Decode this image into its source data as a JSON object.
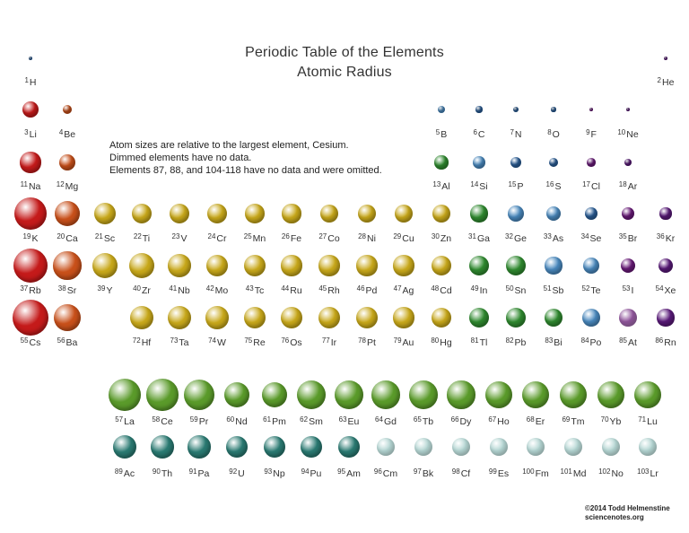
{
  "title": "Periodic Table of the Elements",
  "subtitle": "Atomic Radius",
  "notes": [
    "Atom sizes are relative to the largest element, Cesium.",
    "Dimmed elements have no data.",
    "Elements 87, 88, and 104-118 have no data and were omitted."
  ],
  "credit": [
    "©2014 Todd Helmenstine",
    "sciencenotes.org"
  ],
  "colors": {
    "alkali_metal": "#c41a1a",
    "alkaline_earth": "#c8501a",
    "transition_metal": "#c8a81a",
    "post_transition_metal": "#2f8a2f",
    "metalloid": "#4a8ac0",
    "nonmetal": "#2a5f9a",
    "halogen": "#6a1a7a",
    "noble_gas": "#5a1a7a",
    "lanthanide": "#5a9a2a",
    "actinide": "#2a7a72",
    "actinide_no_data": "#9ac8c4"
  },
  "elements": [
    {
      "n": 1,
      "s": "H",
      "c": "nonmetal",
      "rel": 0.11
    },
    {
      "n": 2,
      "s": "He",
      "c": "noble_gas",
      "rel": 0.06
    },
    {
      "n": 3,
      "s": "Li",
      "c": "alkali_metal",
      "rel": 0.46
    },
    {
      "n": 4,
      "s": "Be",
      "c": "alkaline_earth",
      "rel": 0.27
    },
    {
      "n": 5,
      "s": "B",
      "c": "metalloid",
      "rel": 0.22
    },
    {
      "n": 6,
      "s": "C",
      "c": "nonmetal",
      "rel": 0.18
    },
    {
      "n": 7,
      "s": "N",
      "c": "nonmetal",
      "rel": 0.15
    },
    {
      "n": 8,
      "s": "O",
      "c": "nonmetal",
      "rel": 0.13
    },
    {
      "n": 9,
      "s": "F",
      "c": "halogen",
      "rel": 0.11
    },
    {
      "n": 10,
      "s": "Ne",
      "c": "noble_gas",
      "rel": 0.1
    },
    {
      "n": 11,
      "s": "Na",
      "c": "alkali_metal",
      "rel": 0.58
    },
    {
      "n": 12,
      "s": "Mg",
      "c": "alkaline_earth",
      "rel": 0.46
    },
    {
      "n": 13,
      "s": "Al",
      "c": "post_transition_metal",
      "rel": 0.38
    },
    {
      "n": 14,
      "s": "Si",
      "c": "metalloid",
      "rel": 0.34
    },
    {
      "n": 15,
      "s": "P",
      "c": "nonmetal",
      "rel": 0.3
    },
    {
      "n": 16,
      "s": "S",
      "c": "nonmetal",
      "rel": 0.27
    },
    {
      "n": 17,
      "s": "Cl",
      "c": "halogen",
      "rel": 0.24
    },
    {
      "n": 18,
      "s": "Ar",
      "c": "noble_gas",
      "rel": 0.22
    },
    {
      "n": 19,
      "s": "K",
      "c": "alkali_metal",
      "rel": 0.9
    },
    {
      "n": 20,
      "s": "Ca",
      "c": "alkaline_earth",
      "rel": 0.71
    },
    {
      "n": 21,
      "s": "Sc",
      "c": "transition_metal",
      "rel": 0.6
    },
    {
      "n": 22,
      "s": "Ti",
      "c": "transition_metal",
      "rel": 0.57
    },
    {
      "n": 23,
      "s": "V",
      "c": "transition_metal",
      "rel": 0.55
    },
    {
      "n": 24,
      "s": "Cr",
      "c": "transition_metal",
      "rel": 0.55
    },
    {
      "n": 25,
      "s": "Mn",
      "c": "transition_metal",
      "rel": 0.54
    },
    {
      "n": 26,
      "s": "Fe",
      "c": "transition_metal",
      "rel": 0.53
    },
    {
      "n": 27,
      "s": "Co",
      "c": "transition_metal",
      "rel": 0.52
    },
    {
      "n": 28,
      "s": "Ni",
      "c": "transition_metal",
      "rel": 0.51
    },
    {
      "n": 29,
      "s": "Cu",
      "c": "transition_metal",
      "rel": 0.51
    },
    {
      "n": 30,
      "s": "Zn",
      "c": "transition_metal",
      "rel": 0.5
    },
    {
      "n": 31,
      "s": "Ga",
      "c": "post_transition_metal",
      "rel": 0.48
    },
    {
      "n": 32,
      "s": "Ge",
      "c": "metalloid",
      "rel": 0.46
    },
    {
      "n": 33,
      "s": "As",
      "c": "metalloid",
      "rel": 0.42
    },
    {
      "n": 34,
      "s": "Se",
      "c": "nonmetal",
      "rel": 0.37
    },
    {
      "n": 35,
      "s": "Br",
      "c": "halogen",
      "rel": 0.35
    },
    {
      "n": 36,
      "s": "Kr",
      "c": "noble_gas",
      "rel": 0.33
    },
    {
      "n": 37,
      "s": "Rb",
      "c": "alkali_metal",
      "rel": 0.96
    },
    {
      "n": 38,
      "s": "Sr",
      "c": "alkaline_earth",
      "rel": 0.78
    },
    {
      "n": 39,
      "s": "Y",
      "c": "transition_metal",
      "rel": 0.72
    },
    {
      "n": 40,
      "s": "Zr",
      "c": "transition_metal",
      "rel": 0.7
    },
    {
      "n": 41,
      "s": "Nb",
      "c": "transition_metal",
      "rel": 0.64
    },
    {
      "n": 42,
      "s": "Mo",
      "c": "transition_metal",
      "rel": 0.62
    },
    {
      "n": 43,
      "s": "Tc",
      "c": "transition_metal",
      "rel": 0.6
    },
    {
      "n": 44,
      "s": "Ru",
      "c": "transition_metal",
      "rel": 0.58
    },
    {
      "n": 45,
      "s": "Rh",
      "c": "transition_metal",
      "rel": 0.58
    },
    {
      "n": 46,
      "s": "Pd",
      "c": "transition_metal",
      "rel": 0.58
    },
    {
      "n": 47,
      "s": "Ag",
      "c": "transition_metal",
      "rel": 0.58
    },
    {
      "n": 48,
      "s": "Cd",
      "c": "transition_metal",
      "rel": 0.57
    },
    {
      "n": 49,
      "s": "In",
      "c": "post_transition_metal",
      "rel": 0.57
    },
    {
      "n": 50,
      "s": "Sn",
      "c": "post_transition_metal",
      "rel": 0.55
    },
    {
      "n": 51,
      "s": "Sb",
      "c": "metalloid",
      "rel": 0.48
    },
    {
      "n": 52,
      "s": "Te",
      "c": "metalloid",
      "rel": 0.45
    },
    {
      "n": 53,
      "s": "I",
      "c": "halogen",
      "rel": 0.42
    },
    {
      "n": 54,
      "s": "Xe",
      "c": "noble_gas",
      "rel": 0.41
    },
    {
      "n": 55,
      "s": "Cs",
      "c": "alkali_metal",
      "rel": 1.0
    },
    {
      "n": 56,
      "s": "Ba",
      "c": "alkaline_earth",
      "rel": 0.76
    },
    {
      "n": 72,
      "s": "Hf",
      "c": "transition_metal",
      "rel": 0.66
    },
    {
      "n": 73,
      "s": "Ta",
      "c": "transition_metal",
      "rel": 0.66
    },
    {
      "n": 74,
      "s": "W",
      "c": "transition_metal",
      "rel": 0.64
    },
    {
      "n": 75,
      "s": "Re",
      "c": "transition_metal",
      "rel": 0.62
    },
    {
      "n": 76,
      "s": "Os",
      "c": "transition_metal",
      "rel": 0.61
    },
    {
      "n": 77,
      "s": "Ir",
      "c": "transition_metal",
      "rel": 0.6
    },
    {
      "n": 78,
      "s": "Pt",
      "c": "transition_metal",
      "rel": 0.6
    },
    {
      "n": 79,
      "s": "Au",
      "c": "transition_metal",
      "rel": 0.58
    },
    {
      "n": 80,
      "s": "Hg",
      "c": "transition_metal",
      "rel": 0.57
    },
    {
      "n": 81,
      "s": "Tl",
      "c": "post_transition_metal",
      "rel": 0.57
    },
    {
      "n": 82,
      "s": "Pb",
      "c": "post_transition_metal",
      "rel": 0.55
    },
    {
      "n": 83,
      "s": "Bi",
      "c": "post_transition_metal",
      "rel": 0.52
    },
    {
      "n": 84,
      "s": "Po",
      "c": "metalloid",
      "rel": 0.5
    },
    {
      "n": 85,
      "s": "At",
      "c": "halogen",
      "rel": 0.5,
      "dimmed": true
    },
    {
      "n": 86,
      "s": "Rn",
      "c": "noble_gas",
      "rel": 0.48
    },
    {
      "n": 57,
      "s": "La",
      "c": "lanthanide",
      "rel": 0.9
    },
    {
      "n": 58,
      "s": "Ce",
      "c": "lanthanide",
      "rel": 0.88
    },
    {
      "n": 59,
      "s": "Pr",
      "c": "lanthanide",
      "rel": 0.86
    },
    {
      "n": 60,
      "s": "Nd",
      "c": "lanthanide",
      "rel": 0.72
    },
    {
      "n": 61,
      "s": "Pm",
      "c": "lanthanide",
      "rel": 0.71
    },
    {
      "n": 62,
      "s": "Sm",
      "c": "lanthanide",
      "rel": 0.82
    },
    {
      "n": 63,
      "s": "Eu",
      "c": "lanthanide",
      "rel": 0.8
    },
    {
      "n": 64,
      "s": "Gd",
      "c": "lanthanide",
      "rel": 0.79
    },
    {
      "n": 65,
      "s": "Tb",
      "c": "lanthanide",
      "rel": 0.79
    },
    {
      "n": 66,
      "s": "Dy",
      "c": "lanthanide",
      "rel": 0.78
    },
    {
      "n": 67,
      "s": "Ho",
      "c": "lanthanide",
      "rel": 0.77
    },
    {
      "n": 68,
      "s": "Er",
      "c": "lanthanide",
      "rel": 0.77
    },
    {
      "n": 69,
      "s": "Tm",
      "c": "lanthanide",
      "rel": 0.76
    },
    {
      "n": 70,
      "s": "Yb",
      "c": "lanthanide",
      "rel": 0.76
    },
    {
      "n": 71,
      "s": "Lu",
      "c": "lanthanide",
      "rel": 0.75
    },
    {
      "n": 89,
      "s": "Ac",
      "c": "actinide",
      "rel": 0.67
    },
    {
      "n": 90,
      "s": "Th",
      "c": "actinide",
      "rel": 0.64
    },
    {
      "n": 91,
      "s": "Pa",
      "c": "actinide",
      "rel": 0.63
    },
    {
      "n": 92,
      "s": "U",
      "c": "actinide",
      "rel": 0.62
    },
    {
      "n": 93,
      "s": "Np",
      "c": "actinide",
      "rel": 0.61
    },
    {
      "n": 94,
      "s": "Pu",
      "c": "actinide",
      "rel": 0.61
    },
    {
      "n": 95,
      "s": "Am",
      "c": "actinide",
      "rel": 0.6
    },
    {
      "n": 96,
      "s": "Cm",
      "c": "actinide_no_data",
      "rel": 0.52,
      "dimmed": true
    },
    {
      "n": 97,
      "s": "Bk",
      "c": "actinide_no_data",
      "rel": 0.52,
      "dimmed": true
    },
    {
      "n": 98,
      "s": "Cf",
      "c": "actinide_no_data",
      "rel": 0.52,
      "dimmed": true
    },
    {
      "n": 99,
      "s": "Es",
      "c": "actinide_no_data",
      "rel": 0.52,
      "dimmed": true
    },
    {
      "n": 100,
      "s": "Fm",
      "c": "actinide_no_data",
      "rel": 0.52,
      "dimmed": true
    },
    {
      "n": 101,
      "s": "Md",
      "c": "actinide_no_data",
      "rel": 0.52,
      "dimmed": true
    },
    {
      "n": 102,
      "s": "No",
      "c": "actinide_no_data",
      "rel": 0.52,
      "dimmed": true
    },
    {
      "n": 103,
      "s": "Lr",
      "c": "actinide_no_data",
      "rel": 0.52,
      "dimmed": true
    }
  ]
}
